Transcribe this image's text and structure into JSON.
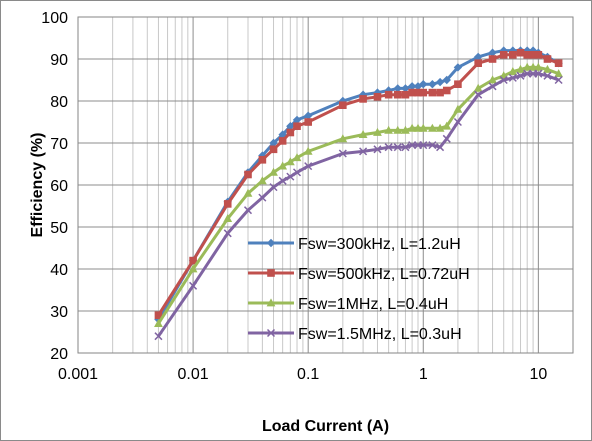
{
  "chart_data": {
    "type": "line",
    "title": "",
    "xlabel": "Load Current (A)",
    "ylabel": "Efficiency  (%)",
    "x_scale": "log",
    "xlim": [
      0.001,
      20
    ],
    "ylim": [
      20,
      100
    ],
    "x_ticks": [
      0.001,
      0.01,
      0.1,
      1,
      10
    ],
    "x_tick_labels": [
      "0.001",
      "0.01",
      "0.1",
      "1",
      "10"
    ],
    "y_ticks": [
      20,
      30,
      40,
      50,
      60,
      70,
      80,
      90,
      100
    ],
    "y_tick_labels": [
      "20",
      "30",
      "40",
      "50",
      "60",
      "70",
      "80",
      "90",
      "100"
    ],
    "grid": true,
    "legend_position": "bottom-right",
    "series": [
      {
        "name": "Fsw=300kHz, L=1.2uH",
        "color": "#4F81BD",
        "marker": "diamond",
        "x": [
          0.005,
          0.01,
          0.02,
          0.03,
          0.04,
          0.05,
          0.06,
          0.07,
          0.08,
          0.1,
          0.2,
          0.3,
          0.4,
          0.5,
          0.6,
          0.7,
          0.8,
          0.9,
          1.0,
          1.2,
          1.4,
          1.6,
          2,
          3,
          4,
          5,
          6,
          7,
          8,
          9,
          10,
          12,
          15
        ],
        "y": [
          28,
          42,
          56,
          63,
          67,
          70,
          72,
          74,
          75.5,
          76.5,
          80,
          81.5,
          82,
          82.5,
          83,
          83,
          83.5,
          83.5,
          84,
          84,
          84.5,
          85,
          88,
          90.5,
          91.5,
          92,
          92,
          92,
          92,
          92,
          91.5,
          90.5,
          89
        ]
      },
      {
        "name": "Fsw=500kHz, L=0.72uH",
        "color": "#C0504D",
        "marker": "square",
        "x": [
          0.005,
          0.01,
          0.02,
          0.03,
          0.04,
          0.05,
          0.06,
          0.07,
          0.08,
          0.1,
          0.2,
          0.3,
          0.4,
          0.5,
          0.6,
          0.7,
          0.8,
          0.9,
          1.0,
          1.2,
          1.4,
          1.6,
          2,
          3,
          4,
          5,
          6,
          7,
          8,
          9,
          10,
          12,
          15
        ],
        "y": [
          29,
          42,
          55.5,
          62.5,
          66,
          68.5,
          70.5,
          72.5,
          74,
          75,
          79,
          80.5,
          81,
          81.5,
          81.5,
          81.5,
          82,
          82,
          82,
          82,
          82,
          82.5,
          84,
          89,
          90,
          91,
          91,
          91.5,
          91,
          91,
          91,
          90,
          89
        ]
      },
      {
        "name": "Fsw=1MHz, L=0.4uH",
        "color": "#9BBB59",
        "marker": "triangle",
        "x": [
          0.005,
          0.01,
          0.02,
          0.03,
          0.04,
          0.05,
          0.06,
          0.07,
          0.08,
          0.1,
          0.2,
          0.3,
          0.4,
          0.5,
          0.6,
          0.7,
          0.8,
          0.9,
          1.0,
          1.2,
          1.4,
          1.6,
          2,
          3,
          4,
          5,
          6,
          7,
          8,
          9,
          10,
          12,
          15
        ],
        "y": [
          27,
          40,
          52,
          58,
          61,
          63,
          64.5,
          65.5,
          66.5,
          68,
          71,
          72,
          72.5,
          73,
          73,
          73,
          73.5,
          73.5,
          73.5,
          73.5,
          73.5,
          74,
          78,
          83,
          85,
          86,
          87,
          87.5,
          88,
          88,
          88,
          87.5,
          86.5
        ]
      },
      {
        "name": "Fsw=1.5MHz, L=0.3uH",
        "color": "#8064A2",
        "marker": "x",
        "x": [
          0.005,
          0.01,
          0.02,
          0.03,
          0.04,
          0.05,
          0.06,
          0.07,
          0.08,
          0.1,
          0.2,
          0.3,
          0.4,
          0.5,
          0.6,
          0.7,
          0.8,
          0.9,
          1.0,
          1.2,
          1.4,
          1.6,
          2,
          3,
          4,
          5,
          6,
          7,
          8,
          9,
          10,
          12,
          15
        ],
        "y": [
          24,
          36,
          48.5,
          54,
          57,
          59.5,
          61,
          62,
          63,
          64.5,
          67.5,
          68,
          68.5,
          69,
          69,
          69,
          69.5,
          69.5,
          69.5,
          69.5,
          69,
          71,
          75,
          81.5,
          83.5,
          85,
          85.5,
          86,
          86.5,
          86.5,
          86.5,
          86,
          85
        ]
      }
    ]
  }
}
